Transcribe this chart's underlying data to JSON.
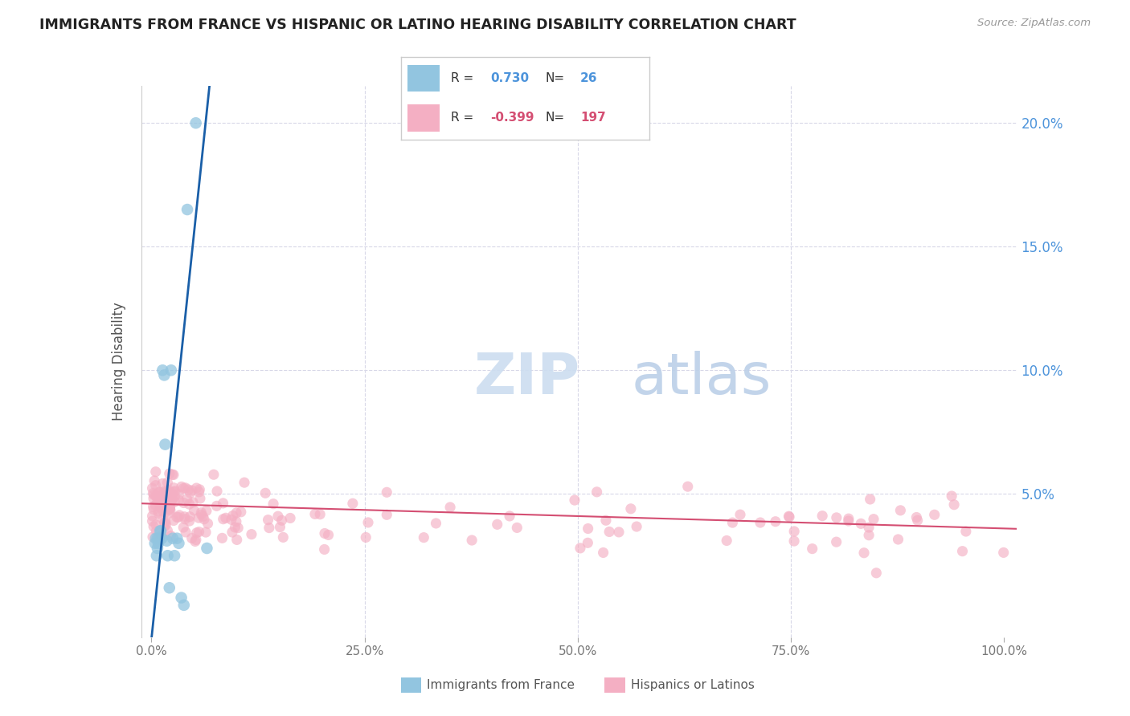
{
  "title": "IMMIGRANTS FROM FRANCE VS HISPANIC OR LATINO HEARING DISABILITY CORRELATION CHART",
  "source": "Source: ZipAtlas.com",
  "ylabel": "Hearing Disability",
  "blue_label": "Immigrants from France",
  "pink_label": "Hispanics or Latinos",
  "blue_R": "0.730",
  "blue_N": "26",
  "pink_R": "-0.399",
  "pink_N": "197",
  "blue_color": "#92c5e0",
  "pink_color": "#f4afc3",
  "blue_line_color": "#1a5fa8",
  "pink_line_color": "#d44e72",
  "title_color": "#222222",
  "axis_tick_color": "#4d94db",
  "xtick_color": "#777777",
  "watermark_zip_color": "#d5e5f5",
  "watermark_atlas_color": "#c8ddf0",
  "background_color": "#ffffff",
  "grid_color": "#d8d8e8",
  "legend_border_color": "#cccccc",
  "legend_text_color": "#333333",
  "ylim_min": -0.008,
  "ylim_max": 0.215,
  "xlim_min": -0.012,
  "xlim_max": 1.015
}
